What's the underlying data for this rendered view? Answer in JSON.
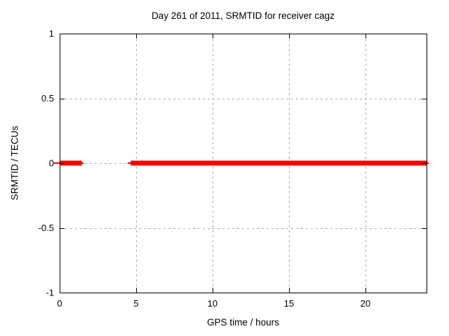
{
  "figure": {
    "title": "Day 261 of 2011, SRMTID for receiver cagz"
  },
  "chart_data": {
    "type": "line",
    "title": "Day 261 of 2011, SRMTID for receiver cagz",
    "xlabel": "GPS time / hours",
    "ylabel": "SRMTID / TECUs",
    "xlim": [
      0,
      24
    ],
    "ylim": [
      -1,
      1
    ],
    "xticks": [
      0,
      5,
      10,
      15,
      20
    ],
    "yticks": [
      -1,
      -0.5,
      0,
      0.5,
      1
    ],
    "grid": true,
    "grid_style": "dashed",
    "legend_position": "none",
    "series": [
      {
        "name": "SRMTID",
        "color": "#ff0000",
        "y_value": 0.0,
        "segments": [
          {
            "x_start": 0.0,
            "x_end": 1.45,
            "y": 0.0
          },
          {
            "x_start": 4.65,
            "x_end": 24.0,
            "y": 0.0
          }
        ]
      }
    ],
    "colors": {
      "line": "#ff0000",
      "grid": "#a8a8a8",
      "border": "#000000",
      "background": "#ffffff",
      "text": "#000000"
    }
  }
}
